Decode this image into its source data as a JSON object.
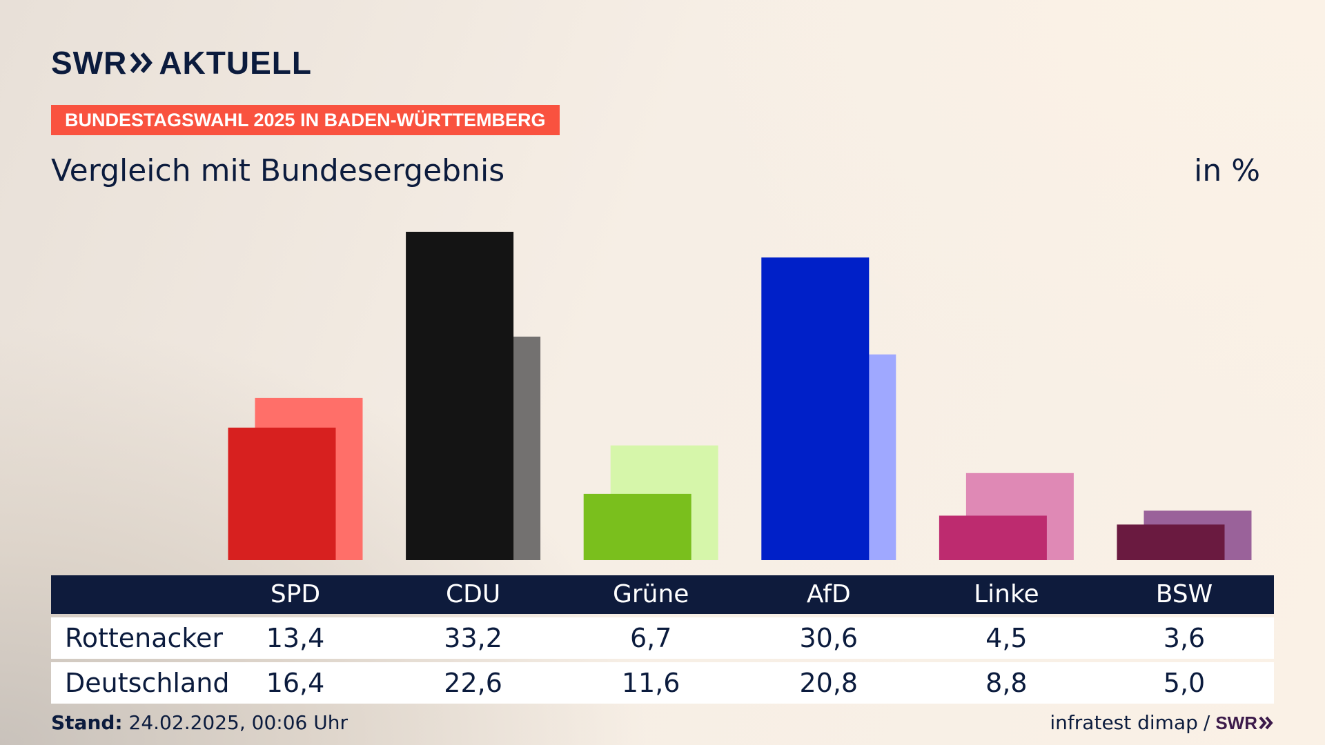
{
  "brand": {
    "logo": "SWR",
    "product": "AKTUELL",
    "logo_icon": "double-chevron-right-icon",
    "color_navy": "#0b1b3d"
  },
  "banner": {
    "text": "BUNDESTAGSWAHL 2025 IN BADEN-WÜRTTEMBERG",
    "color": "#f9523f"
  },
  "subtitle": "Vergleich mit Bundesergebnis",
  "unit": "in %",
  "table": {
    "row_labels": [
      "Rottenacker",
      "Deutschland"
    ]
  },
  "footer": {
    "stand_label": "Stand:",
    "stand_value": "24.02.2025, 00:06 Uhr",
    "source": "infratest dimap",
    "separator": "/",
    "source_logo": "SWR"
  },
  "chart_data": {
    "type": "bar",
    "categories": [
      "SPD",
      "CDU",
      "Grüne",
      "AfD",
      "Linke",
      "BSW"
    ],
    "series": [
      {
        "name": "Rottenacker",
        "values": [
          13.4,
          33.2,
          6.7,
          30.6,
          4.5,
          3.6
        ],
        "colors": [
          "#d7201f",
          "#141414",
          "#7abf1d",
          "#0020c8",
          "#bd2b6f",
          "#6a1a40"
        ]
      },
      {
        "name": "Deutschland",
        "values": [
          16.4,
          22.6,
          11.6,
          20.8,
          8.8,
          5.0
        ],
        "colors": [
          "#ff6f69",
          "#737170",
          "#d6f6aa",
          "#9fa8ff",
          "#df89b5",
          "#9a629a"
        ]
      }
    ],
    "value_labels": {
      "Rottenacker": [
        "13,4",
        "33,2",
        "6,7",
        "30,6",
        "4,5",
        "3,6"
      ],
      "Deutschland": [
        "16,4",
        "22,6",
        "11,6",
        "20,8",
        "8,8",
        "5,0"
      ]
    },
    "ylim": [
      0,
      33.2
    ],
    "grid": false,
    "legend": "table-below"
  }
}
